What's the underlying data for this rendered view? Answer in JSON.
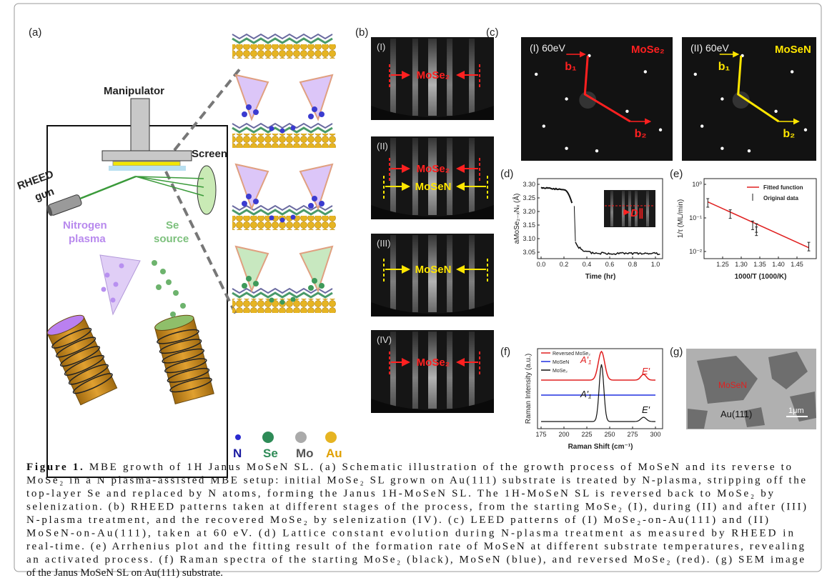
{
  "panel_labels": [
    "(a)",
    "(b)",
    "(c)",
    "(d)",
    "(e)",
    "(f)",
    "(g)"
  ],
  "schematic": {
    "manipulator": "Manipulator",
    "screen": "Screen",
    "rheed_gun": [
      "RHEED",
      "gun"
    ],
    "nitrogen_plasma": [
      "Nitrogen",
      "plasma"
    ],
    "se_source": [
      "Se",
      "source"
    ],
    "legend": [
      "N",
      "Se",
      "Mo",
      "Au"
    ]
  },
  "rheed": {
    "panels": [
      "(I)",
      "(II)",
      "(III)",
      "(IV)"
    ],
    "mose2": "MoSe₂",
    "mosen": "MoSeN"
  },
  "leed": [
    {
      "label": "(I) 60eV",
      "material": "MoSe₂",
      "b1": "b₁",
      "b2": "b₂"
    },
    {
      "label": "(II) 60eV",
      "material": "MoSeN",
      "b1": "b₁",
      "b2": "b₂"
    }
  ],
  "plot_d": {
    "y_label": "aMoSe₂₋ₓNₓ (Å)",
    "x_label": "Time (hr)",
    "yticks": [
      "3.30",
      "3.25",
      "3.20",
      "3.15",
      "3.10",
      "3.05"
    ],
    "xticks": [
      "0.0",
      "0.2",
      "0.4",
      "0.6",
      "0.8",
      "1.0"
    ],
    "inset_label": "D∥"
  },
  "plot_e": {
    "y_label": "1/τ (ML/min)",
    "x_label": "1000/T (1000/K)",
    "yticks": [
      "10⁰",
      "10⁻¹",
      "10⁻²"
    ],
    "xticks": [
      "1.25",
      "1.30",
      "1.35",
      "1.40",
      "1.45"
    ],
    "legend": [
      "Fitted function",
      "Original data"
    ]
  },
  "plot_f": {
    "y_label": "Raman Intensity (a.u.)",
    "x_label": "Raman Shift (cm⁻¹)",
    "xticks": [
      "175",
      "200",
      "225",
      "250",
      "275",
      "300"
    ],
    "legend": [
      "Reversed MoSe₂",
      "MoSeN",
      "MoSe₂"
    ],
    "peaks": [
      "A′₁",
      "E′"
    ]
  },
  "plot_g": {
    "region": "MoSeN",
    "substrate": "Au(111)",
    "scale_bar": "1μm"
  },
  "caption": {
    "prefix": "Figure 1.",
    "lines": [
      " MBE growth of 1H Janus MoSeN SL. (a) Schematic illustration of the growth process of MoSeN and its reverse to",
      "MoSe₂ in a N plasma-assisted MBE setup: initial MoSe₂ SL grown on Au(111) substrate is treated by N-plasma, stripping off the",
      "top-layer Se and replaced by N atoms, forming the Janus 1H-MoSeN SL. The 1H-MoSeN SL is reversed back to MoSe₂ by",
      "selenization. (b) RHEED patterns taken at different stages of the process, from the starting MoSe₂ (I), during (II) and after (III)",
      "N-plasma treatment, and the recovered MoSe₂ by selenization (IV). (c) LEED patterns of (I) MoSe₂-on-Au(111) and (II)",
      "MoSeN-on-Au(111), taken at 60 eV. (d) Lattice constant evolution during N-plasma treatment as measured by RHEED in",
      "real-time. (e) Arrhenius plot and the fitting result of the formation rate of MoSeN at different substrate temperatures, revealing",
      "an activated process. (f) Raman spectra of the starting MoSe₂ (black), MoSeN (blue), and reversed MoSe₂ (red). (g) SEM image",
      "of the Janus MoSeN SL on Au(111) substrate."
    ]
  }
}
